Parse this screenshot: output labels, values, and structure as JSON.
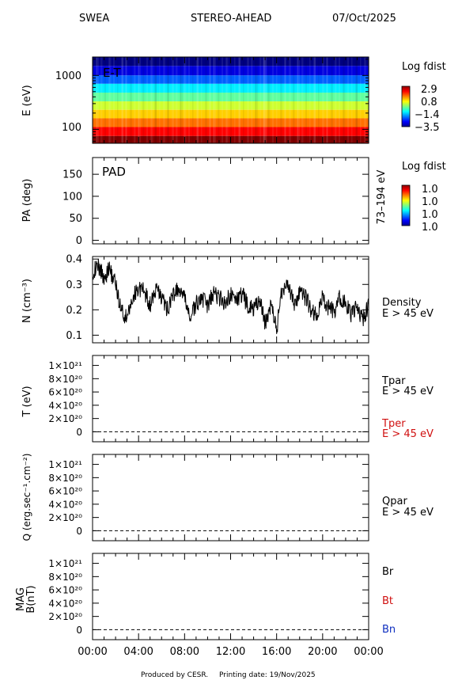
{
  "header": {
    "instrument": "SWEA",
    "spacecraft": "STEREO-AHEAD",
    "date": "07/Oct/2025"
  },
  "footer": {
    "credit": "Produced by CESR.",
    "printing": "Printing date: 19/Nov/2025"
  },
  "x_ticks": [
    "00:00",
    "04:00",
    "08:00",
    "12:00",
    "16:00",
    "20:00",
    "00:00"
  ],
  "chart_data": [
    {
      "type": "heatmap",
      "panel_label": "E-T",
      "ylabel": "E (eV)",
      "yscale": "log",
      "ylim": [
        55,
        2200
      ],
      "y_ticks": [
        100,
        1000
      ],
      "colorbar": {
        "title": "Log fdist",
        "ticks": [
          "2.9",
          "0.8",
          "−1.4",
          "−3.5"
        ],
        "range": [
          -3.5,
          2.9
        ]
      },
      "energy_bands": [
        {
          "e_min": 1500,
          "e_max": 2200,
          "log_fdist": -3.5
        },
        {
          "e_min": 1000,
          "e_max": 1500,
          "log_fdist": -2.9
        },
        {
          "e_min": 700,
          "e_max": 1000,
          "log_fdist": -2.1
        },
        {
          "e_min": 480,
          "e_max": 700,
          "log_fdist": -1.2
        },
        {
          "e_min": 330,
          "e_max": 480,
          "log_fdist": -0.5
        },
        {
          "e_min": 230,
          "e_max": 330,
          "log_fdist": 0.2
        },
        {
          "e_min": 160,
          "e_max": 230,
          "log_fdist": 0.8
        },
        {
          "e_min": 110,
          "e_max": 160,
          "log_fdist": 1.4
        },
        {
          "e_min": 75,
          "e_max": 110,
          "log_fdist": 2.1
        },
        {
          "e_min": 55,
          "e_max": 75,
          "log_fdist": 2.9
        }
      ]
    },
    {
      "type": "heatmap",
      "panel_label": "PAD",
      "ylabel": "PA (deg)",
      "ylim": [
        0,
        180
      ],
      "y_ticks": [
        0,
        50,
        100,
        150
      ],
      "right_label": "73–194 eV",
      "colorbar": {
        "title": "Log fdist",
        "ticks": [
          "1.0",
          "1.0",
          "1.0",
          "1.0"
        ]
      },
      "values": []
    },
    {
      "type": "line",
      "ylabel": "N (cm⁻³)",
      "ylim": [
        0.07,
        0.41
      ],
      "y_ticks": [
        0.1,
        0.2,
        0.3,
        0.4
      ],
      "series": [
        {
          "name": "Density",
          "subtitle": "E > 45 eV",
          "color": "#000000",
          "x": [
            0.0,
            0.5,
            1.0,
            1.5,
            2.0,
            2.5,
            3.0,
            3.5,
            4.0,
            4.5,
            5.0,
            5.5,
            6.0,
            6.5,
            7.0,
            7.5,
            8.0,
            8.5,
            9.0,
            9.5,
            10.0,
            10.5,
            11.0,
            11.5,
            12.0,
            12.5,
            13.0,
            13.5,
            14.0,
            14.5,
            15.0,
            15.5,
            16.0,
            16.5,
            17.0,
            17.5,
            18.0,
            18.5,
            19.0,
            19.5,
            20.0,
            20.5,
            21.0,
            21.5,
            22.0,
            22.5,
            23.0,
            23.5,
            24.0
          ],
          "y": [
            0.35,
            0.37,
            0.33,
            0.36,
            0.3,
            0.2,
            0.16,
            0.25,
            0.29,
            0.27,
            0.22,
            0.28,
            0.25,
            0.2,
            0.26,
            0.28,
            0.24,
            0.17,
            0.22,
            0.25,
            0.21,
            0.27,
            0.25,
            0.23,
            0.26,
            0.24,
            0.26,
            0.22,
            0.2,
            0.24,
            0.15,
            0.22,
            0.12,
            0.29,
            0.3,
            0.22,
            0.26,
            0.25,
            0.2,
            0.17,
            0.25,
            0.21,
            0.19,
            0.25,
            0.22,
            0.18,
            0.21,
            0.16,
            0.22
          ]
        }
      ]
    },
    {
      "type": "line",
      "ylabel": "T (eV)",
      "ylim": [
        -1.5e+20,
        1.15e+21
      ],
      "y_ticks": [
        "0",
        "2×10²⁰",
        "4×10²⁰",
        "6×10²⁰",
        "8×10²⁰",
        "1×10²¹"
      ],
      "y_tick_values": [
        0,
        2e+20,
        4e+20,
        6e+20,
        8e+20,
        1e+21
      ],
      "baseline": 0,
      "series": [
        {
          "name": "Tpar",
          "subtitle": "E > 45 eV",
          "color": "#000000",
          "values": []
        },
        {
          "name": "Tper",
          "subtitle": "E > 45 eV",
          "color": "#d01010",
          "values": []
        }
      ]
    },
    {
      "type": "line",
      "ylabel": "Q (erg.sec⁻¹.cm⁻²)",
      "ylim": [
        -1.5e+20,
        1.15e+21
      ],
      "y_ticks": [
        "0",
        "2×10²⁰",
        "4×10²⁰",
        "6×10²⁰",
        "8×10²⁰",
        "1×10²¹"
      ],
      "y_tick_values": [
        0,
        2e+20,
        4e+20,
        6e+20,
        8e+20,
        1e+21
      ],
      "baseline": 0,
      "series": [
        {
          "name": "Qpar",
          "subtitle": "E > 45 eV",
          "color": "#000000",
          "values": []
        }
      ]
    },
    {
      "type": "line",
      "ylabel": "MAG",
      "ylabel2": "B(nT)",
      "ylim": [
        -1.5e+20,
        1.15e+21
      ],
      "y_ticks": [
        "0",
        "2×10²⁰",
        "4×10²⁰",
        "6×10²⁰",
        "8×10²⁰",
        "1×10²¹"
      ],
      "y_tick_values": [
        0,
        2e+20,
        4e+20,
        6e+20,
        8e+20,
        1e+21
      ],
      "baseline": 0,
      "series": [
        {
          "name": "Br",
          "color": "#000000",
          "values": []
        },
        {
          "name": "Bt",
          "color": "#d01010",
          "values": []
        },
        {
          "name": "Bn",
          "color": "#1030c0",
          "values": []
        }
      ]
    }
  ]
}
